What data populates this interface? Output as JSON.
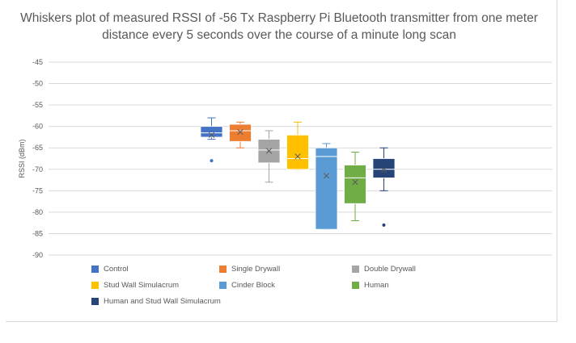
{
  "chart_data": {
    "type": "box",
    "title": "Whiskers plot of measured RSSI of -56 Tx Raspberry Pi Bluetooth transmitter from one meter distance every 5 seconds over the course of a minute long scan",
    "ylabel": "RSSI (dBm)",
    "ylim": [
      -90,
      -45
    ],
    "yticks": [
      -45,
      -50,
      -55,
      -60,
      -65,
      -70,
      -75,
      -80,
      -85,
      -90
    ],
    "grid": true,
    "legend_position": "bottom",
    "series": [
      {
        "name": "Control",
        "color": "#4472c4",
        "min": -63,
        "q1": -62.5,
        "median": -61.5,
        "q3": -60,
        "max": -58,
        "mean": -62,
        "outliers": [
          -68
        ]
      },
      {
        "name": "Single Drywall",
        "color": "#ed7d31",
        "min": -65,
        "q1": -63.5,
        "median": -61,
        "q3": -59.5,
        "max": -59,
        "mean": -61.3,
        "outliers": []
      },
      {
        "name": "Double Drywall",
        "color": "#a5a5a5",
        "min": -73,
        "q1": -68.5,
        "median": -65.5,
        "q3": -63,
        "max": -61,
        "mean": -65.7,
        "outliers": []
      },
      {
        "name": "Stud Wall Simulacrum",
        "color": "#ffc000",
        "min": -70,
        "q1": -70,
        "median": -67.5,
        "q3": -62,
        "max": -59,
        "mean": -67,
        "outliers": []
      },
      {
        "name": "Cinder Block",
        "color": "#5b9bd5",
        "min": -84,
        "q1": -84,
        "median": -67,
        "q3": -65,
        "max": -64,
        "mean": -71.5,
        "outliers": []
      },
      {
        "name": "Human",
        "color": "#70ad47",
        "min": -82,
        "q1": -78,
        "median": -72,
        "q3": -69,
        "max": -66,
        "mean": -73,
        "outliers": []
      },
      {
        "name": "Human and Stud Wall Simulacrum",
        "color": "#264478",
        "min": -75,
        "q1": -72,
        "median": -70,
        "q3": -67.5,
        "max": -65,
        "mean": -70.2,
        "outliers": [
          -83
        ]
      }
    ]
  }
}
